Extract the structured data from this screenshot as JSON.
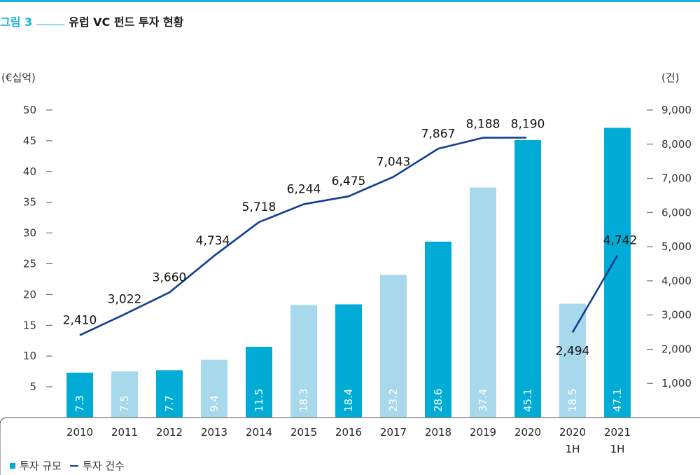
{
  "figure": {
    "label": "그림 3",
    "title": "유럽 VC 펀드 투자 현황"
  },
  "legend": {
    "bars_label": "투자 규모",
    "line_label": "투자 건수"
  },
  "colors": {
    "bar_dark": "#00acd6",
    "bar_light": "#a8d8eb",
    "line": "#0f3f8f",
    "accent": "#19b2d9"
  },
  "chart_data": {
    "type": "bar",
    "categories": [
      "2010",
      "2011",
      "2012",
      "2013",
      "2014",
      "2015",
      "2016",
      "2017",
      "2018",
      "2019",
      "2020",
      "2020\n1H",
      "2021\n1H"
    ],
    "series": [
      {
        "name": "투자 규모",
        "type": "bar",
        "axis": "left",
        "values": [
          7.3,
          7.5,
          7.7,
          9.4,
          11.5,
          18.3,
          18.4,
          23.2,
          28.6,
          37.4,
          45.1,
          18.5,
          47.1
        ],
        "labels": [
          "7.3",
          "7.5",
          "7.7",
          "9.4",
          "11.5",
          "18.3",
          "18.4",
          "23.2",
          "28.6",
          "37.4",
          "45.1",
          "18.5",
          "47.1"
        ],
        "shade": [
          "dark",
          "light",
          "dark",
          "light",
          "dark",
          "light",
          "dark",
          "light",
          "dark",
          "light",
          "dark",
          "light",
          "dark"
        ]
      },
      {
        "name": "투자 건수",
        "type": "line",
        "axis": "right",
        "segments": [
          {
            "x_index": [
              0,
              1,
              2,
              3,
              4,
              5,
              6,
              7,
              8,
              9,
              10
            ],
            "values": [
              2410,
              3022,
              3660,
              4734,
              5718,
              6244,
              6475,
              7043,
              7867,
              8188,
              8190
            ]
          },
          {
            "x_index": [
              11,
              12
            ],
            "values": [
              2494,
              4742
            ]
          }
        ],
        "labels": [
          "2,410",
          "3,022",
          "3,660",
          "4,734",
          "5,718",
          "6,244",
          "6,475",
          "7,043",
          "7,867",
          "8,188",
          "8,190",
          "2,494",
          "4,742"
        ]
      }
    ],
    "y_left": {
      "unit_label": "(€십억)",
      "ticks": [
        5,
        10,
        15,
        20,
        25,
        30,
        35,
        40,
        45,
        50
      ],
      "tick_labels": [
        "5",
        "10",
        "15",
        "20",
        "25",
        "30",
        "35",
        "40",
        "45",
        "50"
      ],
      "range": [
        0,
        50
      ]
    },
    "y_right": {
      "unit_label": "(건)",
      "ticks": [
        1000,
        2000,
        3000,
        4000,
        5000,
        6000,
        7000,
        8000,
        9000
      ],
      "tick_labels": [
        "1,000",
        "2,000",
        "3,000",
        "4,000",
        "5,000",
        "6,000",
        "7,000",
        "8,000",
        "9,000"
      ],
      "range": [
        0,
        9000
      ]
    },
    "grid": false,
    "legend_position": "bottom-left"
  }
}
